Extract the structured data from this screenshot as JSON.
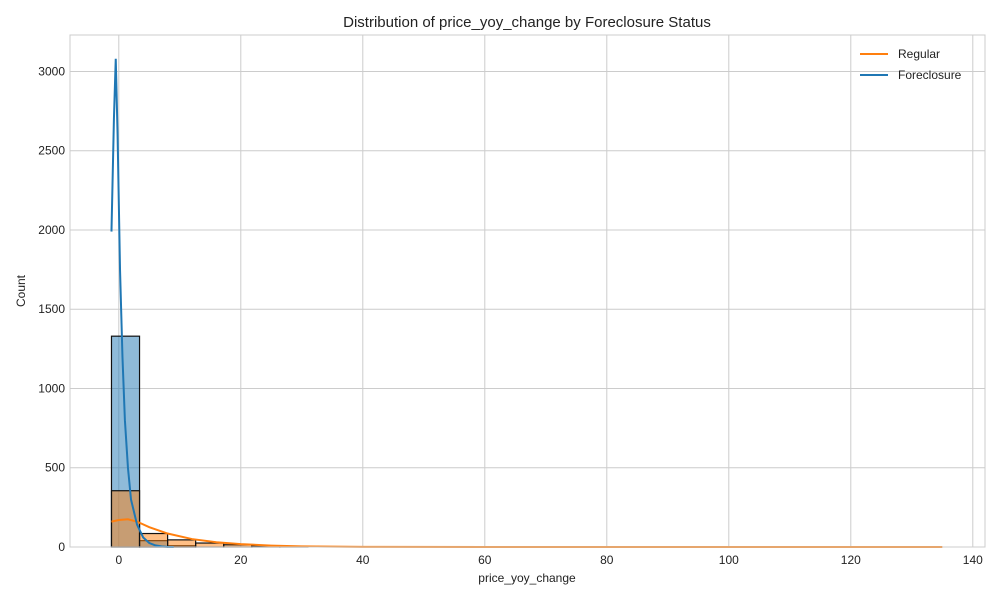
{
  "chart_data": {
    "type": "histogram",
    "title": "Distribution of price_yoy_change by Foreclosure Status",
    "xlabel": "price_yoy_change",
    "ylabel": "Count",
    "xlim": [
      -8,
      142
    ],
    "ylim": [
      0,
      3230
    ],
    "xticks": [
      0,
      20,
      40,
      60,
      80,
      100,
      120,
      140
    ],
    "yticks": [
      0,
      500,
      1000,
      1500,
      2000,
      2500,
      3000
    ],
    "grid": true,
    "legend_position": "top-right",
    "series": [
      {
        "name": "Regular",
        "color": "#ff7f0e",
        "bins": [
          {
            "x0": -1.2,
            "x1": 3.4,
            "count": 355
          },
          {
            "x0": 3.4,
            "x1": 8.0,
            "count": 85
          },
          {
            "x0": 8.0,
            "x1": 12.6,
            "count": 45
          },
          {
            "x0": 12.6,
            "x1": 17.2,
            "count": 25
          },
          {
            "x0": 17.2,
            "x1": 21.8,
            "count": 14
          },
          {
            "x0": 21.8,
            "x1": 26.4,
            "count": 8
          },
          {
            "x0": 26.4,
            "x1": 31.0,
            "count": 3
          }
        ],
        "kde": {
          "x": [
            -1.2,
            0,
            1.5,
            3,
            5,
            8,
            12,
            16,
            20,
            25,
            30,
            40,
            60,
            80,
            100,
            120,
            135
          ],
          "y": [
            160,
            170,
            175,
            160,
            125,
            85,
            50,
            30,
            18,
            9,
            4,
            1,
            0,
            0,
            0,
            0,
            0
          ]
        }
      },
      {
        "name": "Foreclosure",
        "color": "#1f77b4",
        "bins": [
          {
            "x0": -1.2,
            "x1": 3.4,
            "count": 1330
          },
          {
            "x0": 3.4,
            "x1": 8.0,
            "count": 40
          },
          {
            "x0": 8.0,
            "x1": 12.6,
            "count": 8
          }
        ],
        "kde": {
          "x": [
            -1.2,
            -0.8,
            -0.5,
            -0.2,
            0.2,
            0.6,
            1.0,
            1.5,
            2.0,
            3.0,
            4.0,
            5.0,
            6.0,
            7.0,
            8.0,
            9.0
          ],
          "y": [
            1990,
            2700,
            3080,
            2600,
            1750,
            1200,
            800,
            500,
            300,
            140,
            60,
            25,
            10,
            4,
            1,
            0
          ]
        }
      }
    ]
  }
}
